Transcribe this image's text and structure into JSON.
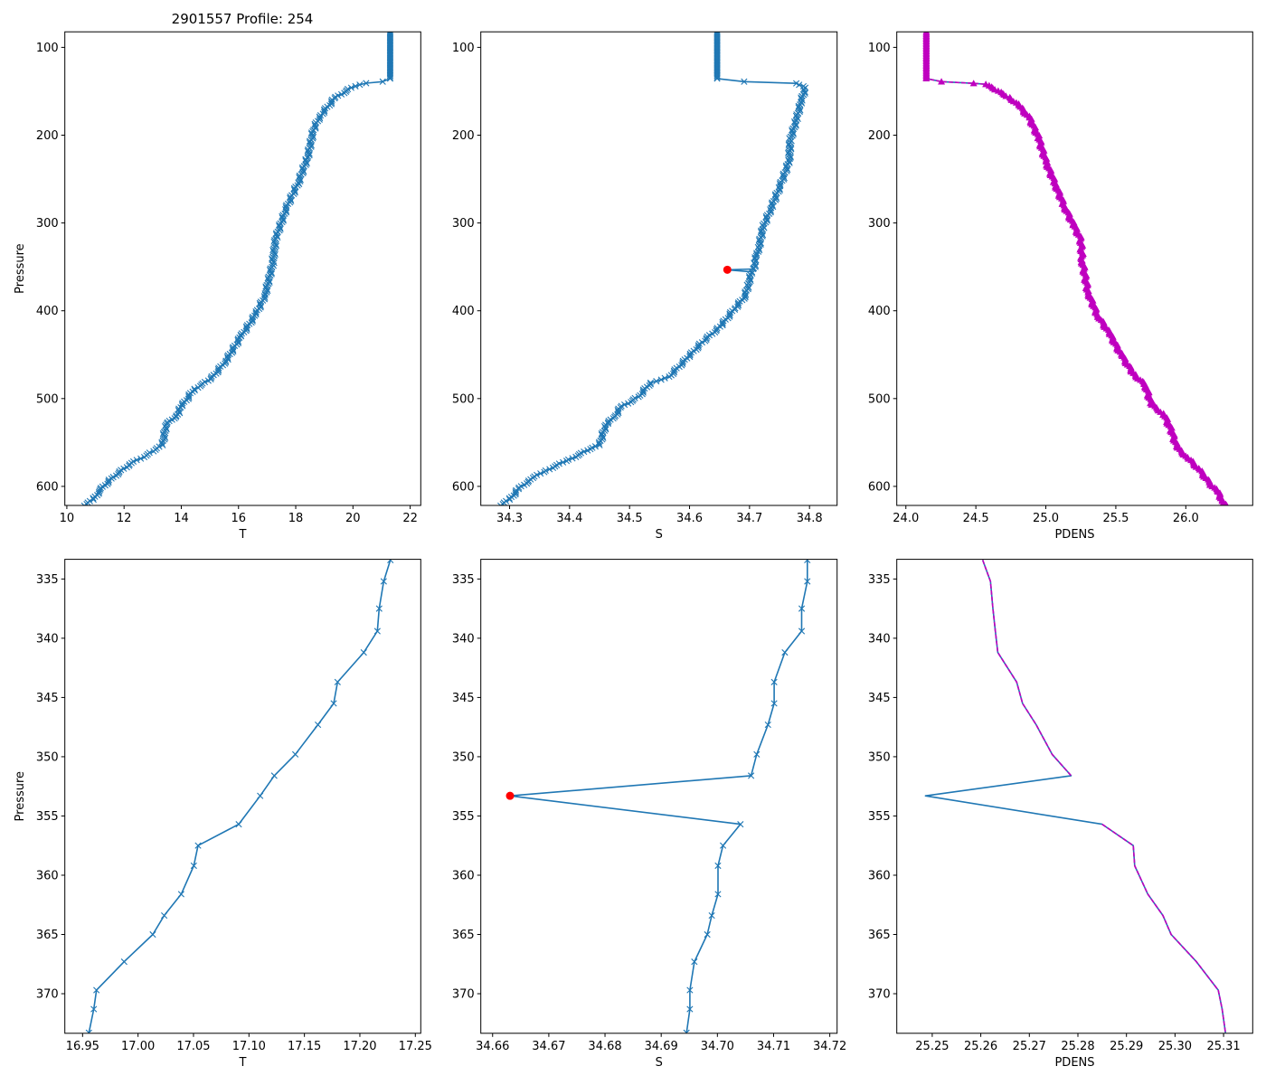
{
  "figure": {
    "title": "2901557 Profile: 254"
  },
  "colors": {
    "profile": "#1f77b4",
    "flagged": "#ff0000",
    "density": "#bf00bf"
  },
  "chart_data": [
    {
      "type": "line",
      "title": "2901557 Profile: 254",
      "xlabel": "T",
      "ylabel": "Pressure",
      "xlim": [
        9.93,
        22.37
      ],
      "ylim": [
        621.7,
        82.3
      ],
      "y_inverted": true,
      "xticks": [
        10,
        12,
        14,
        16,
        18,
        20,
        22
      ],
      "xtick_labels": [
        "10",
        "12",
        "14",
        "16",
        "18",
        "20",
        "22"
      ],
      "yticks": [
        100,
        200,
        300,
        400,
        500,
        600
      ],
      "ytick_labels": [
        "100",
        "200",
        "300",
        "400",
        "500",
        "600"
      ],
      "series": [
        {
          "name": "T",
          "marker": "x",
          "dense": true,
          "pressure": [
            82,
            135.5,
            139,
            140.8,
            146,
            158,
            179,
            194,
            226,
            254,
            283,
            318,
            347,
            382,
            404,
            429,
            457,
            478,
            489,
            510,
            518,
            530,
            553,
            560,
            575,
            591,
            605,
            615,
            622
          ],
          "values": [
            21.3,
            21.3,
            21.04,
            20.46,
            19.94,
            19.36,
            18.83,
            18.62,
            18.41,
            18.09,
            17.67,
            17.3,
            17.19,
            16.93,
            16.61,
            16.09,
            15.56,
            15.03,
            14.46,
            13.98,
            13.88,
            13.46,
            13.35,
            13.03,
            12.19,
            11.56,
            11.14,
            10.93,
            10.61
          ]
        }
      ]
    },
    {
      "type": "line",
      "title": "",
      "xlabel": "S",
      "ylabel": "",
      "xlim": [
        34.252,
        34.846
      ],
      "ylim": [
        621.7,
        82.3
      ],
      "y_inverted": true,
      "xticks": [
        34.3,
        34.4,
        34.5,
        34.6,
        34.7,
        34.8
      ],
      "xtick_labels": [
        "34.3",
        "34.4",
        "34.5",
        "34.6",
        "34.7",
        "34.8"
      ],
      "yticks": [
        100,
        200,
        300,
        400,
        500,
        600
      ],
      "ytick_labels": [
        "100",
        "200",
        "300",
        "400",
        "500",
        "600"
      ],
      "series": [
        {
          "name": "S",
          "marker": "x",
          "dense": true,
          "flagged_index": 17,
          "pressure": [
            82,
            135.5,
            139,
            141,
            146,
            162,
            183,
            205,
            230,
            258,
            283,
            304,
            326,
            336,
            344,
            351.5,
            352.4,
            353.3,
            355.7,
            369,
            383,
            397,
            418,
            436,
            454,
            475,
            482,
            498,
            510,
            521,
            530,
            553,
            559,
            571,
            582,
            592,
            603,
            615,
            622
          ],
          "values": [
            34.646,
            34.646,
            34.691,
            34.778,
            34.793,
            34.786,
            34.778,
            34.768,
            34.766,
            34.751,
            34.736,
            34.723,
            34.716,
            34.712,
            34.71,
            34.707,
            34.706,
            34.663,
            34.704,
            34.698,
            34.693,
            34.676,
            34.651,
            34.621,
            34.596,
            34.566,
            34.535,
            34.515,
            34.485,
            34.475,
            34.46,
            34.45,
            34.43,
            34.395,
            34.36,
            34.335,
            34.315,
            34.3,
            34.285
          ]
        }
      ],
      "flagged_points": [
        {
          "pressure": 353.3,
          "value": 34.663
        }
      ]
    },
    {
      "type": "line",
      "title": "",
      "xlabel": "PDENS",
      "ylabel": "",
      "xlim": [
        23.935,
        26.478
      ],
      "ylim": [
        621.7,
        82.3
      ],
      "y_inverted": true,
      "xticks": [
        24.0,
        24.5,
        25.0,
        25.5,
        26.0
      ],
      "xtick_labels": [
        "24.0",
        "24.5",
        "25.0",
        "25.5",
        "26.0"
      ],
      "yticks": [
        100,
        200,
        300,
        400,
        500,
        600
      ],
      "ytick_labels": [
        "100",
        "200",
        "300",
        "400",
        "500",
        "600"
      ],
      "series": [
        {
          "name": "PDENS",
          "marker": "^",
          "dense": true,
          "overlay_dashed": true,
          "pressure": [
            82,
            135.5,
            139,
            141,
            142,
            148,
            157,
            166,
            180,
            202,
            230,
            255,
            280,
            301,
            318,
            343,
            379,
            404,
            425,
            450,
            471,
            485,
            507,
            517,
            535,
            556,
            567,
            581,
            597,
            606,
            615,
            622
          ],
          "values": [
            24.146,
            24.146,
            24.254,
            24.484,
            24.571,
            24.635,
            24.743,
            24.807,
            24.883,
            24.947,
            25.001,
            25.066,
            25.13,
            25.195,
            25.249,
            25.26,
            25.302,
            25.367,
            25.453,
            25.539,
            25.625,
            25.712,
            25.755,
            25.841,
            25.895,
            25.938,
            26.013,
            26.099,
            26.174,
            26.228,
            26.26,
            26.293
          ]
        }
      ]
    },
    {
      "type": "line",
      "title": "",
      "xlabel": "T",
      "ylabel": "Pressure",
      "xlim": [
        16.934,
        17.2549
      ],
      "ylim": [
        373.34,
        333.34
      ],
      "y_inverted": true,
      "xticks": [
        16.95,
        17.0,
        17.05,
        17.1,
        17.15,
        17.2,
        17.25
      ],
      "xtick_labels": [
        "16.95",
        "17.00",
        "17.05",
        "17.10",
        "17.15",
        "17.20",
        "17.25"
      ],
      "yticks": [
        335,
        340,
        345,
        350,
        355,
        360,
        365,
        370
      ],
      "ytick_labels": [
        "335",
        "340",
        "345",
        "350",
        "355",
        "360",
        "365",
        "370"
      ],
      "series": [
        {
          "name": "T",
          "marker": "x",
          "dense": false,
          "pressure": [
            333.4,
            335.2,
            337.5,
            339.4,
            341.2,
            343.7,
            345.5,
            347.3,
            349.8,
            351.6,
            353.3,
            355.7,
            357.5,
            359.2,
            361.6,
            363.4,
            365.0,
            367.3,
            369.7,
            371.3,
            373.3
          ],
          "values": [
            17.2275,
            17.2215,
            17.2174,
            17.2158,
            17.2035,
            17.1799,
            17.1764,
            17.1622,
            17.1418,
            17.1228,
            17.1101,
            17.0908,
            17.0541,
            17.0503,
            17.0389,
            17.0236,
            17.0133,
            16.9875,
            16.9625,
            16.9601,
            16.9557
          ]
        }
      ]
    },
    {
      "type": "line",
      "title": "",
      "xlabel": "S",
      "ylabel": "",
      "xlim": [
        34.6579,
        34.7213
      ],
      "ylim": [
        373.34,
        333.34
      ],
      "y_inverted": true,
      "xticks": [
        34.66,
        34.67,
        34.68,
        34.69,
        34.7,
        34.71,
        34.72
      ],
      "xtick_labels": [
        "34.66",
        "34.67",
        "34.68",
        "34.69",
        "34.70",
        "34.71",
        "34.72"
      ],
      "yticks": [
        335,
        340,
        345,
        350,
        355,
        360,
        365,
        370
      ],
      "ytick_labels": [
        "335",
        "340",
        "345",
        "350",
        "355",
        "360",
        "365",
        "370"
      ],
      "series": [
        {
          "name": "S",
          "marker": "x",
          "dense": false,
          "flagged_index": 10,
          "pressure": [
            333.4,
            335.2,
            337.5,
            339.4,
            341.2,
            343.7,
            345.5,
            347.3,
            349.8,
            351.6,
            353.3,
            355.7,
            357.5,
            359.2,
            361.6,
            363.4,
            365.0,
            367.3,
            369.7,
            371.3,
            373.3
          ],
          "values": [
            34.716,
            34.716,
            34.715,
            34.715,
            34.712,
            34.7101,
            34.7101,
            34.709,
            34.707,
            34.706,
            34.6631,
            34.7041,
            34.701,
            34.7001,
            34.7001,
            34.699,
            34.6982,
            34.6959,
            34.6951,
            34.6951,
            34.6945
          ]
        }
      ],
      "flagged_points": [
        {
          "pressure": 353.3,
          "value": 34.6631
        }
      ]
    },
    {
      "type": "line",
      "title": "",
      "xlabel": "PDENS",
      "ylabel": "",
      "xlim": [
        25.2427,
        25.316
      ],
      "ylim": [
        373.34,
        333.34
      ],
      "y_inverted": true,
      "xticks": [
        25.25,
        25.26,
        25.27,
        25.28,
        25.29,
        25.3,
        25.31
      ],
      "xtick_labels": [
        "25.25",
        "25.26",
        "25.27",
        "25.28",
        "25.29",
        "25.30",
        "25.31"
      ],
      "yticks": [
        335,
        340,
        345,
        350,
        355,
        360,
        365,
        370
      ],
      "ytick_labels": [
        "335",
        "340",
        "345",
        "350",
        "355",
        "360",
        "365",
        "370"
      ],
      "series": [
        {
          "name": "PDENS",
          "marker": "none",
          "dense": false,
          "overlay_dashed": true,
          "overlay_skip_index": 10,
          "pressure": [
            333.4,
            335.2,
            337.5,
            339.4,
            341.2,
            343.7,
            345.5,
            347.3,
            349.8,
            351.6,
            353.3,
            355.7,
            357.5,
            359.2,
            361.6,
            363.4,
            365.0,
            367.3,
            369.7,
            371.3,
            373.3
          ],
          "values": [
            25.2604,
            25.262,
            25.2625,
            25.263,
            25.2635,
            25.2674,
            25.2686,
            25.2714,
            25.2747,
            25.2786,
            25.2486,
            25.285,
            25.2914,
            25.2917,
            25.2944,
            25.2975,
            25.2992,
            25.3044,
            25.3089,
            25.3097,
            25.3104
          ]
        }
      ]
    }
  ]
}
